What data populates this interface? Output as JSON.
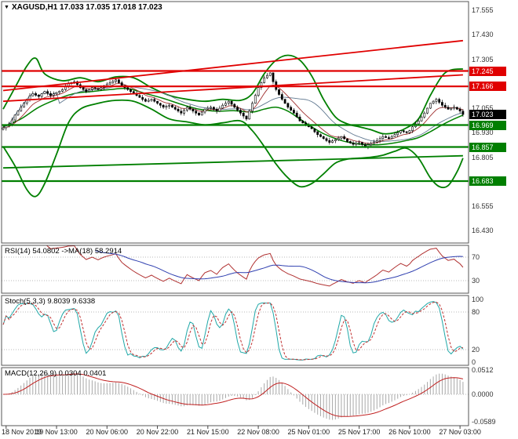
{
  "window": {
    "title": "XAGUSD,H1 17.033 17.035 17.018 17.023",
    "collapse_icon": "▼"
  },
  "colors": {
    "background": "#ffffff",
    "candle_bull": "#ffffff",
    "candle_bear": "#000000",
    "candle_outline": "#000000",
    "resistance": "#e00000",
    "support": "#007f00",
    "current_price": "#000000",
    "ma_fast": "#a03030",
    "ma_slow": "#607890",
    "bands": "#008000",
    "rsi_line": "#b03030",
    "rsi_ma": "#3040b0",
    "stoch_k": "#20a8a8",
    "stoch_d": "#c03030",
    "macd_hist": "#a8a8a8",
    "macd_signal": "#c02020",
    "axis_text": "#333333",
    "panel_border": "#555555",
    "grid_dotted": "#b8b8b8"
  },
  "chart_data": {
    "type": "candlestick",
    "symbol": "XAGUSD",
    "timeframe": "H1",
    "ohlc": {
      "open": "17.033",
      "high": "17.035",
      "low": "17.018",
      "close": "17.023"
    },
    "price_axis_labels": [
      17.555,
      17.43,
      17.305,
      17.055,
      16.93,
      16.805,
      16.555,
      16.43
    ],
    "time_axis": {
      "tick_indices": [
        1,
        18,
        35,
        52,
        69,
        86,
        103,
        120,
        137,
        154
      ],
      "labels": [
        "18 Nov 2019",
        "19 Nov 13:00",
        "20 Nov 06:00",
        "20 Nov 22:00",
        "21 Nov 15:00",
        "22 Nov 08:00",
        "25 Nov 01:00",
        "25 Nov 17:00",
        "26 Nov 10:00",
        "27 Nov 03:00"
      ]
    },
    "levels": [
      {
        "price": 17.245,
        "label": "17.245",
        "type": "resistance"
      },
      {
        "price": 17.166,
        "label": "17.166",
        "type": "resistance"
      },
      {
        "price": 17.023,
        "label": "17.023",
        "type": "current"
      },
      {
        "price": 16.969,
        "label": "16.969",
        "type": "support"
      },
      {
        "price": 16.857,
        "label": "16.857",
        "type": "support"
      },
      {
        "price": 16.683,
        "label": "16.683",
        "type": "support"
      }
    ],
    "trendlines": [
      {
        "type": "resistance",
        "from": [
          0,
          17.145
        ],
        "to": [
          155,
          17.4
        ]
      },
      {
        "type": "resistance",
        "from": [
          0,
          17.09
        ],
        "to": [
          155,
          17.225
        ]
      },
      {
        "type": "support",
        "from": [
          0,
          16.75
        ],
        "to": [
          155,
          16.812
        ]
      }
    ],
    "bands": {
      "upper": [
        [
          0,
          17.05
        ],
        [
          4,
          17.16
        ],
        [
          8,
          17.27
        ],
        [
          11,
          17.31
        ],
        [
          14,
          17.23
        ],
        [
          20,
          17.195
        ],
        [
          26,
          17.21
        ],
        [
          32,
          17.19
        ],
        [
          38,
          17.215
        ],
        [
          44,
          17.21
        ],
        [
          50,
          17.16
        ],
        [
          56,
          17.12
        ],
        [
          62,
          17.1
        ],
        [
          68,
          17.09
        ],
        [
          74,
          17.1
        ],
        [
          80,
          17.095
        ],
        [
          84,
          17.13
        ],
        [
          88,
          17.23
        ],
        [
          92,
          17.3
        ],
        [
          96,
          17.325
        ],
        [
          100,
          17.3
        ],
        [
          104,
          17.22
        ],
        [
          108,
          17.1
        ],
        [
          112,
          17.01
        ],
        [
          116,
          16.975
        ],
        [
          120,
          16.96
        ],
        [
          124,
          16.945
        ],
        [
          128,
          16.925
        ],
        [
          132,
          16.93
        ],
        [
          136,
          16.955
        ],
        [
          140,
          17.0
        ],
        [
          144,
          17.12
        ],
        [
          148,
          17.22
        ],
        [
          151,
          17.25
        ],
        [
          155,
          17.255
        ]
      ],
      "middle": [
        [
          0,
          16.96
        ],
        [
          6,
          17.0
        ],
        [
          12,
          17.06
        ],
        [
          18,
          17.1
        ],
        [
          24,
          17.13
        ],
        [
          30,
          17.14
        ],
        [
          36,
          17.15
        ],
        [
          42,
          17.155
        ],
        [
          48,
          17.13
        ],
        [
          54,
          17.105
        ],
        [
          60,
          17.075
        ],
        [
          66,
          17.05
        ],
        [
          72,
          17.04
        ],
        [
          78,
          17.042
        ],
        [
          84,
          17.035
        ],
        [
          88,
          17.05
        ],
        [
          92,
          17.06
        ],
        [
          96,
          17.04
        ],
        [
          100,
          17.0
        ],
        [
          104,
          16.96
        ],
        [
          108,
          16.925
        ],
        [
          112,
          16.9
        ],
        [
          116,
          16.882
        ],
        [
          120,
          16.872
        ],
        [
          124,
          16.868
        ],
        [
          128,
          16.87
        ],
        [
          132,
          16.878
        ],
        [
          136,
          16.89
        ],
        [
          140,
          16.905
        ],
        [
          144,
          16.935
        ],
        [
          148,
          16.97
        ],
        [
          152,
          17.0
        ],
        [
          155,
          17.02
        ]
      ],
      "lower": [
        [
          0,
          16.86
        ],
        [
          4,
          16.76
        ],
        [
          8,
          16.64
        ],
        [
          11,
          16.605
        ],
        [
          14,
          16.67
        ],
        [
          18,
          16.82
        ],
        [
          22,
          16.98
        ],
        [
          26,
          17.05
        ],
        [
          32,
          17.08
        ],
        [
          38,
          17.095
        ],
        [
          44,
          17.09
        ],
        [
          50,
          17.05
        ],
        [
          56,
          17.0
        ],
        [
          62,
          16.985
        ],
        [
          68,
          16.97
        ],
        [
          74,
          16.98
        ],
        [
          80,
          16.99
        ],
        [
          84,
          16.94
        ],
        [
          88,
          16.86
        ],
        [
          92,
          16.77
        ],
        [
          96,
          16.7
        ],
        [
          100,
          16.655
        ],
        [
          104,
          16.67
        ],
        [
          108,
          16.72
        ],
        [
          112,
          16.775
        ],
        [
          116,
          16.795
        ],
        [
          120,
          16.8
        ],
        [
          124,
          16.805
        ],
        [
          128,
          16.815
        ],
        [
          132,
          16.835
        ],
        [
          136,
          16.85
        ],
        [
          140,
          16.8
        ],
        [
          144,
          16.7
        ],
        [
          147,
          16.655
        ],
        [
          150,
          16.66
        ],
        [
          153,
          16.73
        ],
        [
          155,
          16.8
        ]
      ]
    },
    "closes": [
      16.955,
      16.965,
      16.975,
      16.995,
      17.02,
      17.04,
      17.06,
      17.08,
      17.1,
      17.118,
      17.13,
      17.122,
      17.115,
      17.128,
      17.14,
      17.13,
      17.12,
      17.128,
      17.135,
      17.142,
      17.15,
      17.165,
      17.18,
      17.185,
      17.19,
      17.175,
      17.16,
      17.15,
      17.14,
      17.15,
      17.16,
      17.155,
      17.15,
      17.16,
      17.17,
      17.178,
      17.185,
      17.192,
      17.2,
      17.185,
      17.17,
      17.16,
      17.15,
      17.14,
      17.13,
      17.12,
      17.11,
      17.1,
      17.09,
      17.095,
      17.1,
      17.09,
      17.08,
      17.07,
      17.06,
      17.065,
      17.07,
      17.06,
      17.05,
      17.04,
      17.03,
      17.045,
      17.06,
      17.05,
      17.04,
      17.03,
      17.02,
      17.035,
      17.05,
      17.055,
      17.06,
      17.05,
      17.04,
      17.055,
      17.07,
      17.08,
      17.09,
      17.075,
      17.06,
      17.045,
      17.03,
      17.015,
      17.0,
      17.04,
      17.08,
      17.12,
      17.16,
      17.185,
      17.21,
      17.222,
      17.235,
      17.19,
      17.15,
      17.125,
      17.1,
      17.08,
      17.06,
      17.045,
      17.03,
      17.01,
      16.99,
      16.98,
      16.97,
      16.96,
      16.95,
      16.935,
      16.92,
      16.91,
      16.9,
      16.89,
      16.88,
      16.888,
      16.895,
      16.902,
      16.91,
      16.898,
      16.885,
      16.878,
      16.87,
      16.875,
      16.88,
      16.87,
      16.86,
      16.868,
      16.875,
      16.882,
      16.89,
      16.9,
      16.91,
      16.905,
      16.9,
      16.91,
      16.92,
      16.93,
      16.94,
      16.935,
      16.93,
      16.94,
      16.96,
      16.975,
      16.99,
      17.01,
      17.03,
      17.055,
      17.08,
      17.09,
      17.1,
      17.085,
      17.07,
      17.06,
      17.05,
      17.055,
      17.06,
      17.05,
      17.04,
      17.023
    ],
    "indicators": {
      "rsi": {
        "label": "RSI(14) 54.0802 ->MA(18) 58.2914",
        "period": 14,
        "ma_period": 18,
        "value": 54.0802,
        "ma_value": 58.2914,
        "levels": [
          70,
          30
        ],
        "axis_labels": [
          70,
          30
        ]
      },
      "stoch": {
        "label": "Stoch(5,3,3) 9.8039 9.6338",
        "k_period": 5,
        "slowing": 3,
        "d_period": 3,
        "value": 9.8039,
        "signal_value": 9.6338,
        "levels": [
          80,
          20
        ],
        "axis_labels": [
          100,
          80,
          20,
          0
        ]
      },
      "macd": {
        "label": "MACD(12,26,9) 0.0304 0.0401",
        "fast": 12,
        "slow": 26,
        "signal": 9,
        "value": 0.0304,
        "signal_value": 0.0401,
        "axis_labels": [
          0.0512,
          0.0,
          -0.0589
        ]
      }
    }
  }
}
